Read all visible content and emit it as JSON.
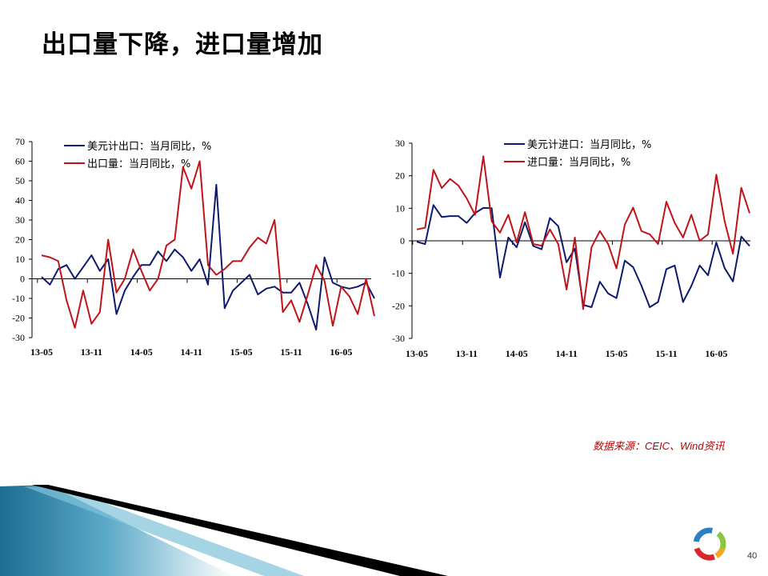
{
  "slide": {
    "title": "出口量下降，进口量增加",
    "source_note": "数据来源：CEIC、Wind资讯",
    "page_number": "40"
  },
  "colors": {
    "navy": "#0d1a6e",
    "red": "#c0131a",
    "source_red": "#c00000"
  },
  "chart_data": [
    {
      "type": "line",
      "x_tick_labels": [
        "13-05",
        "13-11",
        "14-05",
        "14-11",
        "15-05",
        "15-11",
        "16-05"
      ],
      "ylim": [
        -30,
        70
      ],
      "yticks": [
        -30,
        -20,
        -10,
        0,
        10,
        20,
        30,
        40,
        50,
        60,
        70
      ],
      "legend_position": "top-left",
      "grid": false,
      "series": [
        {
          "name": "美元计出口：当月同比，%",
          "color": "#0d1a6e",
          "values": [
            1,
            -3,
            5,
            7,
            0,
            6,
            12,
            4,
            10,
            -18,
            -6,
            1,
            7,
            7,
            14,
            9,
            15,
            11,
            4,
            10,
            -3,
            48,
            -15,
            -6,
            -2,
            2,
            -8,
            -5,
            -4,
            -7,
            -7,
            -2,
            -13,
            -26,
            11,
            -2,
            -4,
            -5,
            -4,
            -2,
            -10
          ]
        },
        {
          "name": "出口量：当月同比，%",
          "color": "#c0131a",
          "values": [
            12,
            11,
            9,
            -11,
            -25,
            -6,
            -23,
            -17,
            20,
            -7,
            0,
            15,
            4,
            -6,
            0,
            17,
            20,
            57,
            46,
            60,
            7,
            2,
            5,
            9,
            9,
            16,
            21,
            18,
            30,
            -17,
            -11,
            -22,
            -8,
            7,
            -1,
            -24,
            -4,
            -9,
            -18,
            0,
            -19
          ]
        }
      ]
    },
    {
      "type": "line",
      "x_tick_labels": [
        "13-05",
        "13-11",
        "14-05",
        "14-11",
        "15-05",
        "15-11",
        "16-05"
      ],
      "ylim": [
        -30,
        30
      ],
      "yticks": [
        -30,
        -20,
        -10,
        0,
        10,
        20,
        30
      ],
      "legend_position": "top-right",
      "grid": false,
      "series": [
        {
          "name": "美元计进口：当月同比，%",
          "color": "#0d1a6e",
          "values": [
            -0.3,
            -1,
            11,
            7.3,
            7.6,
            7.6,
            5.5,
            8.5,
            10.1,
            10,
            -11.3,
            1,
            -2,
            5.7,
            -1.6,
            -2.6,
            7,
            4.5,
            -6.6,
            -2.4,
            -19.7,
            -20.4,
            -12.6,
            -16.2,
            -17.6,
            -6.1,
            -8.1,
            -13.8,
            -20.4,
            -18.8,
            -8.7,
            -7.6,
            -18.8,
            -13.9,
            -7.6,
            -10.6,
            -0.5,
            -8.4,
            -12.5,
            1.3,
            -1.6
          ]
        },
        {
          "name": "进口量：当月同比，%",
          "color": "#c0131a",
          "values": [
            3.5,
            4,
            21.8,
            16.2,
            19,
            17,
            13,
            8,
            26,
            6,
            2.5,
            8,
            -0.5,
            8.8,
            -1,
            -1.5,
            3.5,
            -1,
            -15,
            1,
            -21,
            -2,
            3,
            -1,
            -8.5,
            5,
            10.2,
            3,
            2,
            -1,
            12,
            5.5,
            1,
            8,
            0,
            2,
            20.3,
            6,
            -4,
            16.3,
            8.5
          ]
        }
      ]
    }
  ]
}
